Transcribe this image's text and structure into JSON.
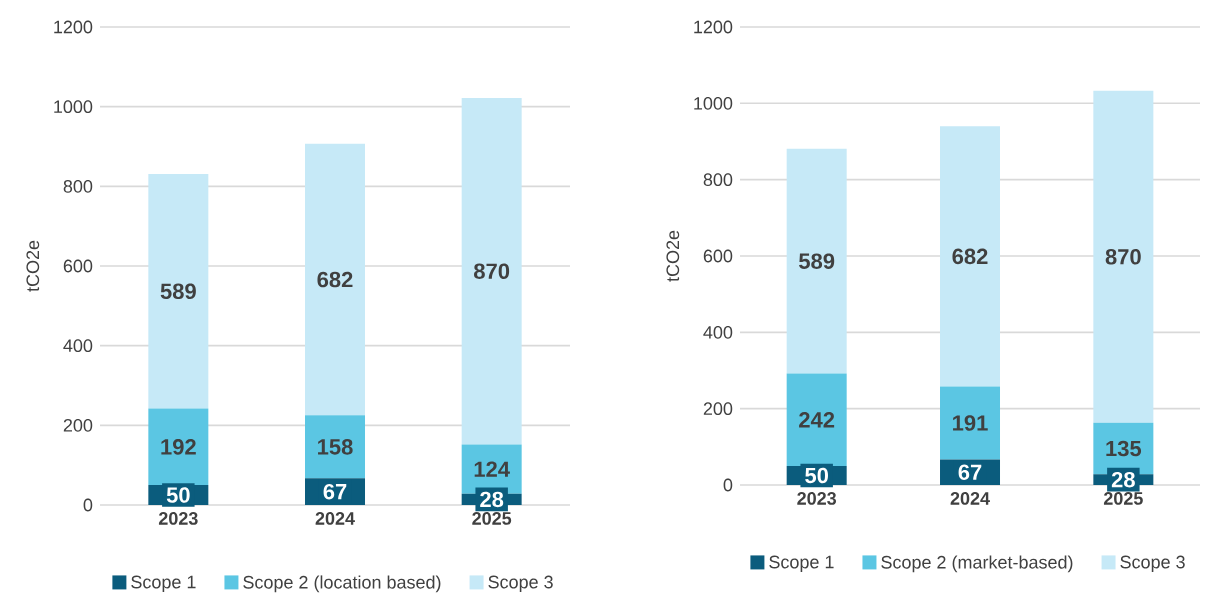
{
  "chart_data": [
    {
      "type": "bar",
      "stacked": true,
      "ylabel": "tCO2e",
      "categories": [
        "2023",
        "2024",
        "2025"
      ],
      "ylim": [
        0,
        1200
      ],
      "yticks": [
        0,
        200,
        400,
        600,
        800,
        1000,
        1200
      ],
      "grid": "y",
      "legend": "bottom",
      "data_labels": true,
      "series": [
        {
          "name": "Scope 1",
          "color": "#0b5c7d",
          "values": [
            50,
            67,
            28
          ]
        },
        {
          "name": "Scope 2 (location based)",
          "color": "#5bc6e3",
          "values": [
            192,
            158,
            124
          ]
        },
        {
          "name": "Scope 3",
          "color": "#c6e9f7",
          "values": [
            589,
            682,
            870
          ]
        }
      ]
    },
    {
      "type": "bar",
      "stacked": true,
      "ylabel": "tCO2e",
      "categories": [
        "2023",
        "2024",
        "2025"
      ],
      "ylim": [
        0,
        1200
      ],
      "yticks": [
        0,
        200,
        400,
        600,
        800,
        1000,
        1200
      ],
      "grid": "y",
      "legend": "bottom",
      "data_labels": true,
      "series": [
        {
          "name": "Scope 1",
          "color": "#0b5c7d",
          "values": [
            50,
            67,
            28
          ]
        },
        {
          "name": "Scope 2 (market-based)",
          "color": "#5bc6e3",
          "values": [
            242,
            191,
            135
          ]
        },
        {
          "name": "Scope 3",
          "color": "#c6e9f7",
          "values": [
            589,
            682,
            870
          ]
        }
      ]
    }
  ]
}
